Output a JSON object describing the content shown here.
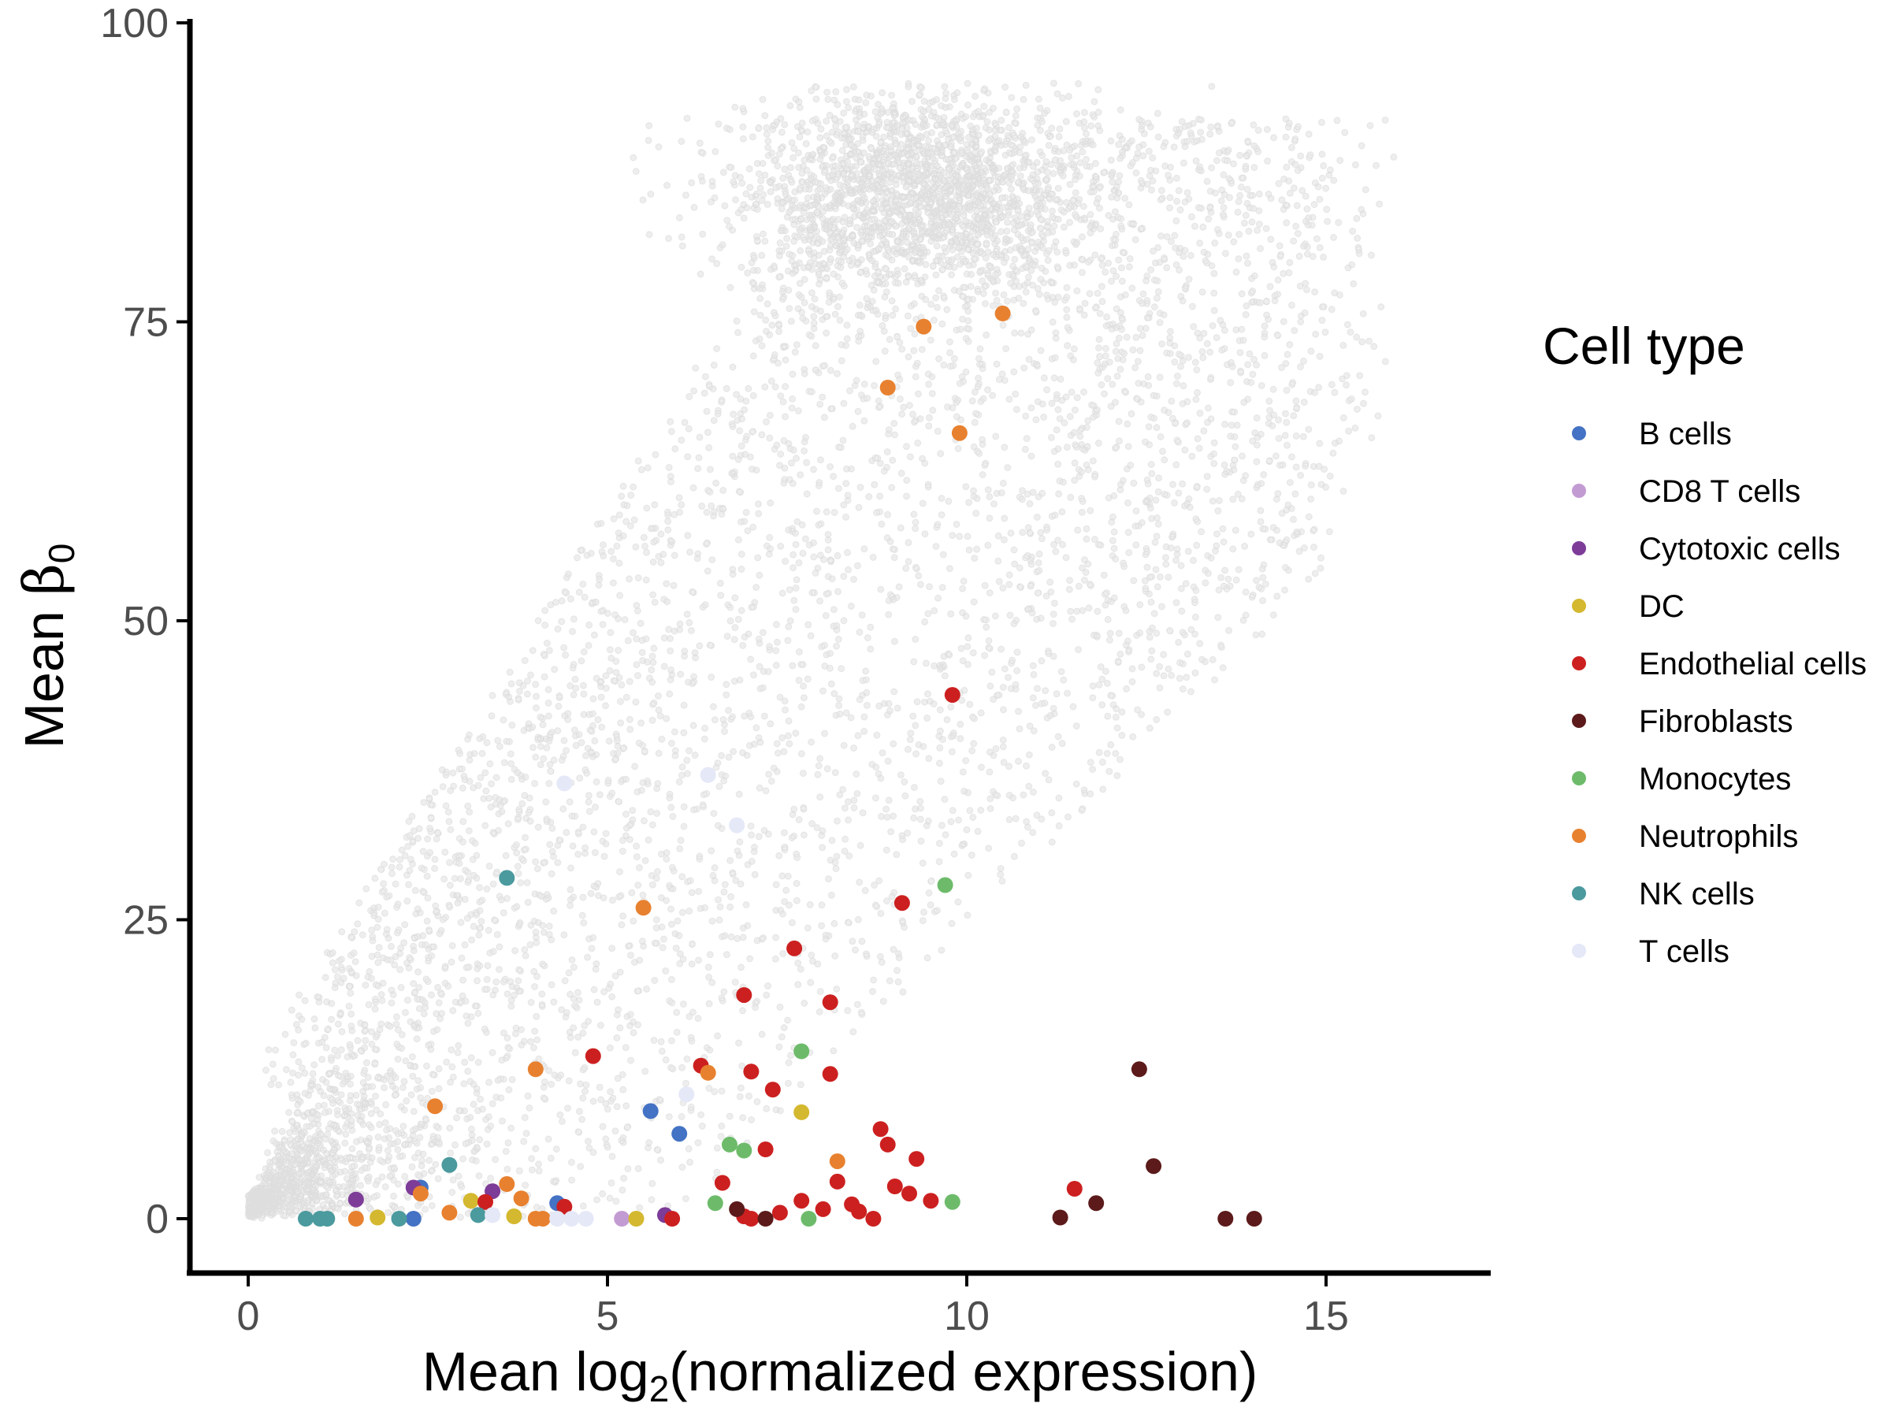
{
  "chart_data": {
    "type": "scatter",
    "xlabel_prefix": "Mean log",
    "xlabel_sub": "2",
    "xlabel_suffix": "(normalized expression)",
    "ylabel_prefix": "Mean ",
    "ylabel_symbol": "β",
    "ylabel_sub": "0",
    "xlim": [
      -0.8,
      17.3
    ],
    "ylim": [
      -5,
      100
    ],
    "x_ticks": [
      0,
      5,
      10,
      15
    ],
    "y_ticks": [
      0,
      25,
      50,
      75,
      100
    ],
    "grid": false,
    "legend_position": "right",
    "legend_title": "Cell type",
    "background_points": {
      "color": "#595959",
      "description_note": "dense grey cloud of genes (semi-transparent)",
      "count": 16000,
      "x_range": [
        0,
        16.5
      ],
      "y_range": [
        0,
        95
      ]
    },
    "series": [
      {
        "name": "B cells",
        "color": "#4472C4",
        "x": [
          2.4,
          4.3,
          5.6,
          6.0,
          2.3
        ],
        "y": [
          2.6,
          1.3,
          9.0,
          7.1,
          0.0
        ]
      },
      {
        "name": "CD8 T cells",
        "color": "#C39BD3",
        "x": [
          5.2,
          6.9
        ],
        "y": [
          0.0,
          0.2
        ]
      },
      {
        "name": "Cytotoxic cells",
        "color": "#7D3C98",
        "x": [
          1.5,
          2.3,
          3.4,
          5.8
        ],
        "y": [
          1.6,
          2.6,
          2.3,
          0.3
        ]
      },
      {
        "name": "DC",
        "color": "#D4B82F",
        "x": [
          1.8,
          3.1,
          3.7,
          5.4,
          7.7
        ],
        "y": [
          0.1,
          1.5,
          0.2,
          0.0,
          8.9
        ]
      },
      {
        "name": "Endothelial cells",
        "color": "#CC2020",
        "x": [
          3.3,
          4.8,
          5.9,
          6.3,
          6.6,
          6.9,
          7.0,
          7.0,
          7.2,
          7.3,
          7.6,
          7.7,
          8.1,
          8.1,
          8.2,
          8.4,
          8.5,
          8.7,
          8.8,
          8.9,
          9.0,
          9.1,
          9.2,
          9.3,
          9.5,
          9.8,
          11.5,
          7.4,
          4.4,
          6.9,
          8.0
        ],
        "y": [
          1.4,
          13.6,
          0.0,
          12.8,
          3.0,
          18.7,
          12.3,
          0.0,
          5.8,
          10.8,
          22.6,
          1.5,
          18.1,
          12.1,
          3.1,
          1.2,
          0.6,
          0.0,
          7.5,
          6.2,
          2.7,
          26.4,
          2.1,
          5.0,
          1.5,
          43.8,
          2.5,
          0.5,
          1.0,
          0.2,
          0.8
        ]
      },
      {
        "name": "Fibroblasts",
        "color": "#5C1A1A",
        "x": [
          6.8,
          7.2,
          11.3,
          11.8,
          12.4,
          12.6,
          13.6,
          14.0
        ],
        "y": [
          0.8,
          0.0,
          0.1,
          1.3,
          12.5,
          4.4,
          0.0,
          0.0
        ]
      },
      {
        "name": "Monocytes",
        "color": "#6DBB6A",
        "x": [
          6.5,
          6.7,
          6.9,
          7.7,
          7.8,
          9.7,
          9.8
        ],
        "y": [
          1.3,
          6.2,
          5.7,
          14.0,
          0.0,
          27.9,
          1.4
        ]
      },
      {
        "name": "Neutrophils",
        "color": "#E8812F",
        "x": [
          1.5,
          2.4,
          2.6,
          2.8,
          3.6,
          3.8,
          4.0,
          4.0,
          5.5,
          6.4,
          8.2,
          8.9,
          9.4,
          9.9,
          10.5,
          4.1
        ],
        "y": [
          0.0,
          2.1,
          9.4,
          0.5,
          2.9,
          1.7,
          12.5,
          0.0,
          26.0,
          12.2,
          4.8,
          69.5,
          74.6,
          65.7,
          75.7,
          0.0
        ]
      },
      {
        "name": "NK cells",
        "color": "#4A9A9E",
        "x": [
          0.8,
          1.0,
          1.1,
          2.1,
          2.8,
          3.2,
          3.6
        ],
        "y": [
          0.0,
          0.0,
          0.0,
          0.0,
          4.5,
          0.3,
          28.5
        ]
      },
      {
        "name": "T cells",
        "color": "#E4E8F7",
        "x": [
          4.4,
          6.4,
          6.8,
          4.3,
          4.5,
          4.7,
          6.1,
          3.4
        ],
        "y": [
          36.4,
          37.1,
          32.9,
          0.0,
          0.0,
          0.0,
          10.4,
          0.3
        ]
      }
    ]
  }
}
